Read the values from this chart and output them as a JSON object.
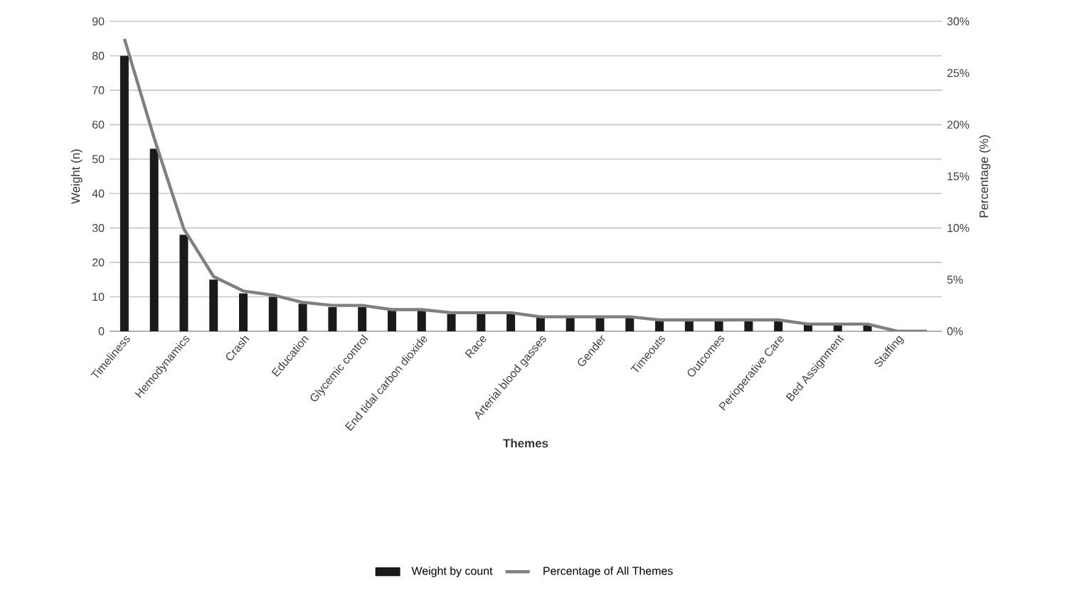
{
  "chart_data": {
    "type": "bar",
    "xlabel": "Themes",
    "ylabel": "Weight (n)",
    "y2label": "Percentage (%)",
    "categories": [
      "Timeliness",
      null,
      "Hemodynamics",
      null,
      "Crash",
      null,
      "Education",
      null,
      "Glycemic control",
      null,
      "End tidal carbon dioxide",
      null,
      "Race",
      null,
      "Arterial blood gasses",
      null,
      "Gender",
      null,
      "Timeouts",
      null,
      "Outcomes",
      null,
      "Perioperative Care",
      null,
      "Bed Assignment",
      null,
      "Staffing",
      null
    ],
    "series": [
      {
        "name": "Weight by count",
        "color": "#1a1a1a",
        "values": [
          80,
          53,
          28,
          15,
          11,
          10,
          8,
          7,
          7,
          6,
          6,
          5,
          5,
          5,
          4,
          4,
          4,
          4,
          3,
          3,
          3,
          3,
          3,
          2,
          2,
          2,
          0,
          0
        ]
      },
      {
        "name": "Percentage of All Themes",
        "type": "line",
        "axis": "y2",
        "color": "#808080",
        "values": [
          28.3,
          18.7,
          9.9,
          5.3,
          3.9,
          3.5,
          2.8,
          2.5,
          2.5,
          2.1,
          2.1,
          1.8,
          1.8,
          1.8,
          1.4,
          1.4,
          1.4,
          1.4,
          1.1,
          1.1,
          1.1,
          1.1,
          1.1,
          0.7,
          0.7,
          0.7,
          0,
          0
        ]
      }
    ],
    "ylim": [
      0,
      90
    ],
    "yticks": [
      0,
      10,
      20,
      30,
      40,
      50,
      60,
      70,
      80,
      90
    ],
    "y2lim": [
      0,
      30
    ],
    "y2ticks": [
      {
        "value": 0,
        "label": "0%"
      },
      {
        "value": 5,
        "label": "5%"
      },
      {
        "value": 10,
        "label": "10%"
      },
      {
        "value": 15,
        "label": "15%"
      },
      {
        "value": 20,
        "label": "20%"
      },
      {
        "value": 25,
        "label": "25%"
      },
      {
        "value": 30,
        "label": "30%"
      }
    ],
    "grid": "y",
    "legend": "bottom",
    "marker": "none",
    "line_style": "solid"
  }
}
